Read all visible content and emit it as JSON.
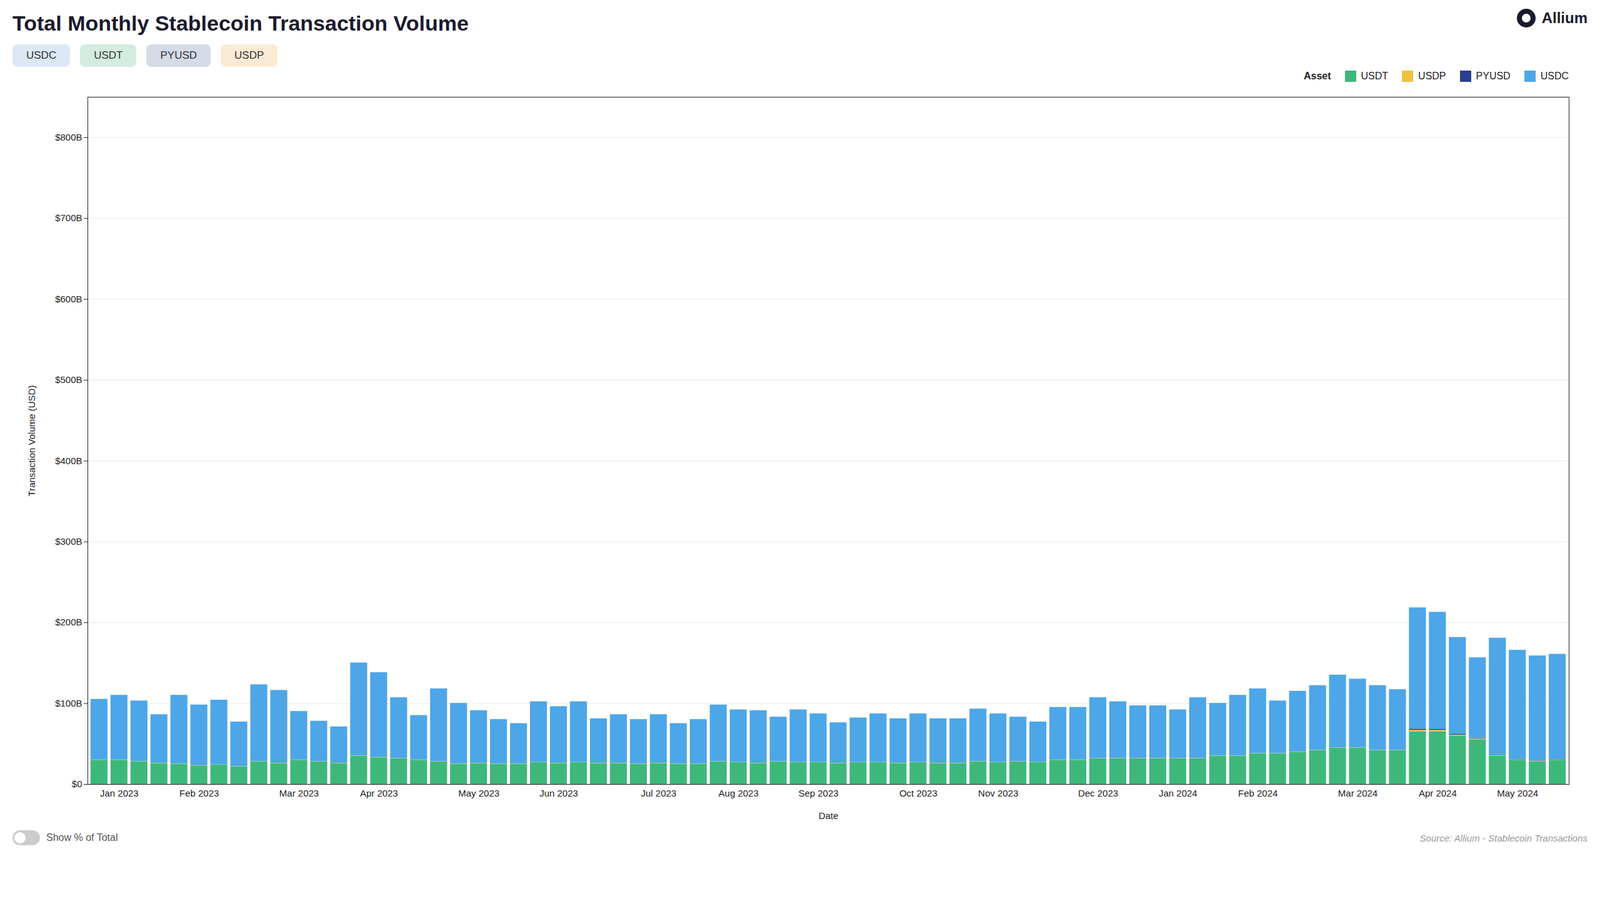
{
  "chart_data": {
    "type": "bar",
    "stacked": true,
    "title": "Total Monthly Stablecoin Transaction Volume",
    "x_label": "Date",
    "y_label": "Transaction Volume (USD)",
    "source": "Source: Allium - Stablecoin Transactions",
    "buttons": [
      {
        "label": "USDC",
        "color": "#dce8f5"
      },
      {
        "label": "USDT",
        "color": "#d3ecdf"
      },
      {
        "label": "PYUSD",
        "color": "#d5dce8"
      },
      {
        "label": "USDP",
        "color": "#faebd5"
      }
    ],
    "toggle_label": "Show % of Total",
    "logo_text": "Allium",
    "legend": "upper right",
    "legend_title": "Asset",
    "grid": true,
    "categories": [
      null,
      "Jan 2023",
      null,
      null,
      null,
      "Feb 2023",
      null,
      null,
      null,
      null,
      "Mar 2023",
      null,
      null,
      null,
      "Apr 2023",
      null,
      null,
      null,
      null,
      "May 2023",
      null,
      null,
      null,
      "Jun 2023",
      null,
      null,
      null,
      null,
      "Jul 2023",
      null,
      null,
      null,
      "Aug 2023",
      null,
      null,
      null,
      "Sep 2023",
      null,
      null,
      null,
      null,
      "Oct 2023",
      null,
      null,
      null,
      "Nov 2023",
      null,
      null,
      null,
      null,
      "Dec 2023",
      null,
      null,
      null,
      "Jan 2024",
      null,
      null,
      null,
      "Feb 2024",
      null,
      null,
      null,
      null,
      "Mar 2024",
      null,
      null,
      null,
      "Apr 2024",
      null,
      null,
      null,
      "May 2024",
      null,
      null
    ],
    "ylim": [
      0,
      850000000000
    ],
    "yticks": [
      {
        "value": 0,
        "label": "$0"
      },
      {
        "value": 100000000000,
        "label": "$100B"
      },
      {
        "value": 200000000000,
        "label": "$200B"
      },
      {
        "value": 300000000000,
        "label": "$300B"
      },
      {
        "value": 400000000000,
        "label": "$400B"
      },
      {
        "value": 500000000000,
        "label": "$500B"
      },
      {
        "value": 600000000000,
        "label": "$600B"
      },
      {
        "value": 700000000000,
        "label": "$700B"
      },
      {
        "value": 800000000000,
        "label": "$800B"
      }
    ],
    "series": [
      {
        "name": "USDT",
        "color": "#3db87a",
        "values": [
          30000000000,
          30000000000,
          28000000000,
          26000000000,
          25000000000,
          23000000000,
          24000000000,
          22000000000,
          28000000000,
          26000000000,
          30000000000,
          28000000000,
          26000000000,
          35000000000,
          33000000000,
          32000000000,
          30000000000,
          28000000000,
          25000000000,
          26000000000,
          25000000000,
          25000000000,
          27000000000,
          26000000000,
          27000000000,
          26000000000,
          26000000000,
          25000000000,
          26000000000,
          25000000000,
          25000000000,
          28000000000,
          27000000000,
          26000000000,
          28000000000,
          27000000000,
          27000000000,
          26000000000,
          27000000000,
          27000000000,
          26000000000,
          27000000000,
          26000000000,
          26000000000,
          28000000000,
          27000000000,
          28000000000,
          27000000000,
          30000000000,
          30000000000,
          32000000000,
          32000000000,
          32000000000,
          32000000000,
          32000000000,
          32000000000,
          35000000000,
          35000000000,
          38000000000,
          38000000000,
          40000000000,
          42000000000,
          45000000000,
          45000000000,
          42000000000,
          42000000000,
          65000000000,
          65000000000,
          60000000000,
          55000000000,
          35000000000,
          30000000000,
          28000000000,
          30000000000
        ]
      },
      {
        "name": "USDP",
        "color": "#f0c040",
        "values": [
          300000000,
          300000000,
          300000000,
          300000000,
          300000000,
          300000000,
          300000000,
          300000000,
          300000000,
          300000000,
          300000000,
          300000000,
          300000000,
          300000000,
          300000000,
          300000000,
          300000000,
          300000000,
          300000000,
          300000000,
          300000000,
          300000000,
          300000000,
          300000000,
          300000000,
          300000000,
          300000000,
          300000000,
          300000000,
          300000000,
          300000000,
          300000000,
          300000000,
          300000000,
          300000000,
          300000000,
          300000000,
          300000000,
          300000000,
          300000000,
          300000000,
          300000000,
          300000000,
          300000000,
          300000000,
          300000000,
          300000000,
          300000000,
          300000000,
          300000000,
          300000000,
          300000000,
          300000000,
          300000000,
          300000000,
          300000000,
          300000000,
          300000000,
          300000000,
          300000000,
          300000000,
          300000000,
          300000000,
          300000000,
          300000000,
          300000000,
          2000000000,
          2000000000,
          1000000000,
          1000000000,
          500000000,
          500000000,
          500000000,
          500000000
        ]
      },
      {
        "name": "PYUSD",
        "color": "#2c3e8c",
        "values": [
          0,
          0,
          0,
          0,
          0,
          0,
          0,
          0,
          0,
          0,
          0,
          0,
          0,
          0,
          0,
          0,
          0,
          0,
          0,
          0,
          0,
          0,
          0,
          0,
          0,
          0,
          0,
          0,
          0,
          0,
          0,
          0,
          0,
          0,
          0,
          0,
          0,
          0,
          0,
          0,
          0,
          0,
          0,
          0,
          0,
          0,
          0,
          0,
          0,
          0,
          0,
          0,
          0,
          0,
          0,
          0,
          0,
          0,
          0,
          0,
          0,
          0,
          0,
          0,
          0,
          0,
          1500000000,
          1000000000,
          800000000,
          700000000,
          500000000,
          500000000,
          500000000,
          500000000
        ]
      },
      {
        "name": "USDC",
        "color": "#4da6e8",
        "values": [
          75000000000,
          80000000000,
          75000000000,
          60000000000,
          85000000000,
          75000000000,
          80000000000,
          55000000000,
          95000000000,
          90000000000,
          60000000000,
          50000000000,
          45000000000,
          115000000000,
          105000000000,
          75000000000,
          55000000000,
          90000000000,
          75000000000,
          65000000000,
          55000000000,
          50000000000,
          75000000000,
          70000000000,
          75000000000,
          55000000000,
          60000000000,
          55000000000,
          60000000000,
          50000000000,
          55000000000,
          70000000000,
          65000000000,
          65000000000,
          55000000000,
          65000000000,
          60000000000,
          50000000000,
          55000000000,
          60000000000,
          55000000000,
          60000000000,
          55000000000,
          55000000000,
          65000000000,
          60000000000,
          55000000000,
          50000000000,
          65000000000,
          65000000000,
          75000000000,
          70000000000,
          65000000000,
          65000000000,
          60000000000,
          75000000000,
          65000000000,
          75000000000,
          80000000000,
          65000000000,
          75000000000,
          80000000000,
          90000000000,
          85000000000,
          80000000000,
          75000000000,
          150000000000,
          145000000000,
          120000000000,
          100000000000,
          145000000000,
          135000000000,
          130000000000,
          130000000000
        ]
      }
    ]
  }
}
